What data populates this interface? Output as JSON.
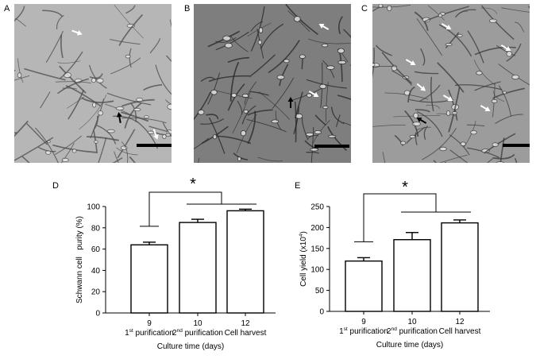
{
  "panels": {
    "a": "A",
    "b": "B",
    "c": "C",
    "d": "D",
    "e": "E"
  },
  "micrographs": [
    {
      "panel": "A",
      "tone": "#b6b6b6",
      "cell_tone": "#4a4a4a",
      "white_arrows": 2,
      "black_arrows": 1
    },
    {
      "panel": "B",
      "tone": "#7e7e7e",
      "cell_tone": "#262626",
      "white_arrows": 2,
      "black_arrows": 1
    },
    {
      "panel": "C",
      "tone": "#9c9c9c",
      "cell_tone": "#3a3a3a",
      "white_arrows": 6,
      "black_arrows": 1
    }
  ],
  "chart_data": [
    {
      "type": "bar",
      "panel": "D",
      "categories": [
        "9",
        "10",
        "12"
      ],
      "category_sublabels": [
        {
          "pre": "1",
          "sup": "st",
          "post": " purification"
        },
        {
          "pre": "2",
          "sup": "nd",
          "post": " purification"
        },
        {
          "pre": "Cell harvest",
          "sup": "",
          "post": ""
        }
      ],
      "values": [
        64,
        85,
        96
      ],
      "errors": [
        2.5,
        3,
        1.5
      ],
      "xlabel": "Culture time (days)",
      "ylabel": "Schwann cell   purity (%)",
      "ylim": [
        0,
        100
      ],
      "yticks": [
        0,
        20,
        40,
        60,
        80,
        100
      ],
      "grid": false,
      "significance": {
        "label": "*",
        "from": 0,
        "to": [
          1,
          2
        ]
      }
    },
    {
      "type": "bar",
      "panel": "E",
      "categories": [
        "9",
        "10",
        "12"
      ],
      "category_sublabels": [
        {
          "pre": "1",
          "sup": "st",
          "post": " purification"
        },
        {
          "pre": "2",
          "sup": "nd",
          "post": " purification"
        },
        {
          "pre": "Cell harvest",
          "sup": "",
          "post": ""
        }
      ],
      "values": [
        120,
        171,
        211
      ],
      "errors": [
        8,
        17,
        7
      ],
      "xlabel": "Culture time (days)",
      "ylabel_pre": "Cell yield (x10",
      "ylabel_sup": "4",
      "ylabel_post": ")",
      "ylim": [
        0,
        250
      ],
      "yticks": [
        0,
        50,
        100,
        150,
        200,
        250
      ],
      "grid": false,
      "significance": {
        "label": "*",
        "from": 0,
        "to": [
          1,
          2
        ]
      }
    }
  ]
}
